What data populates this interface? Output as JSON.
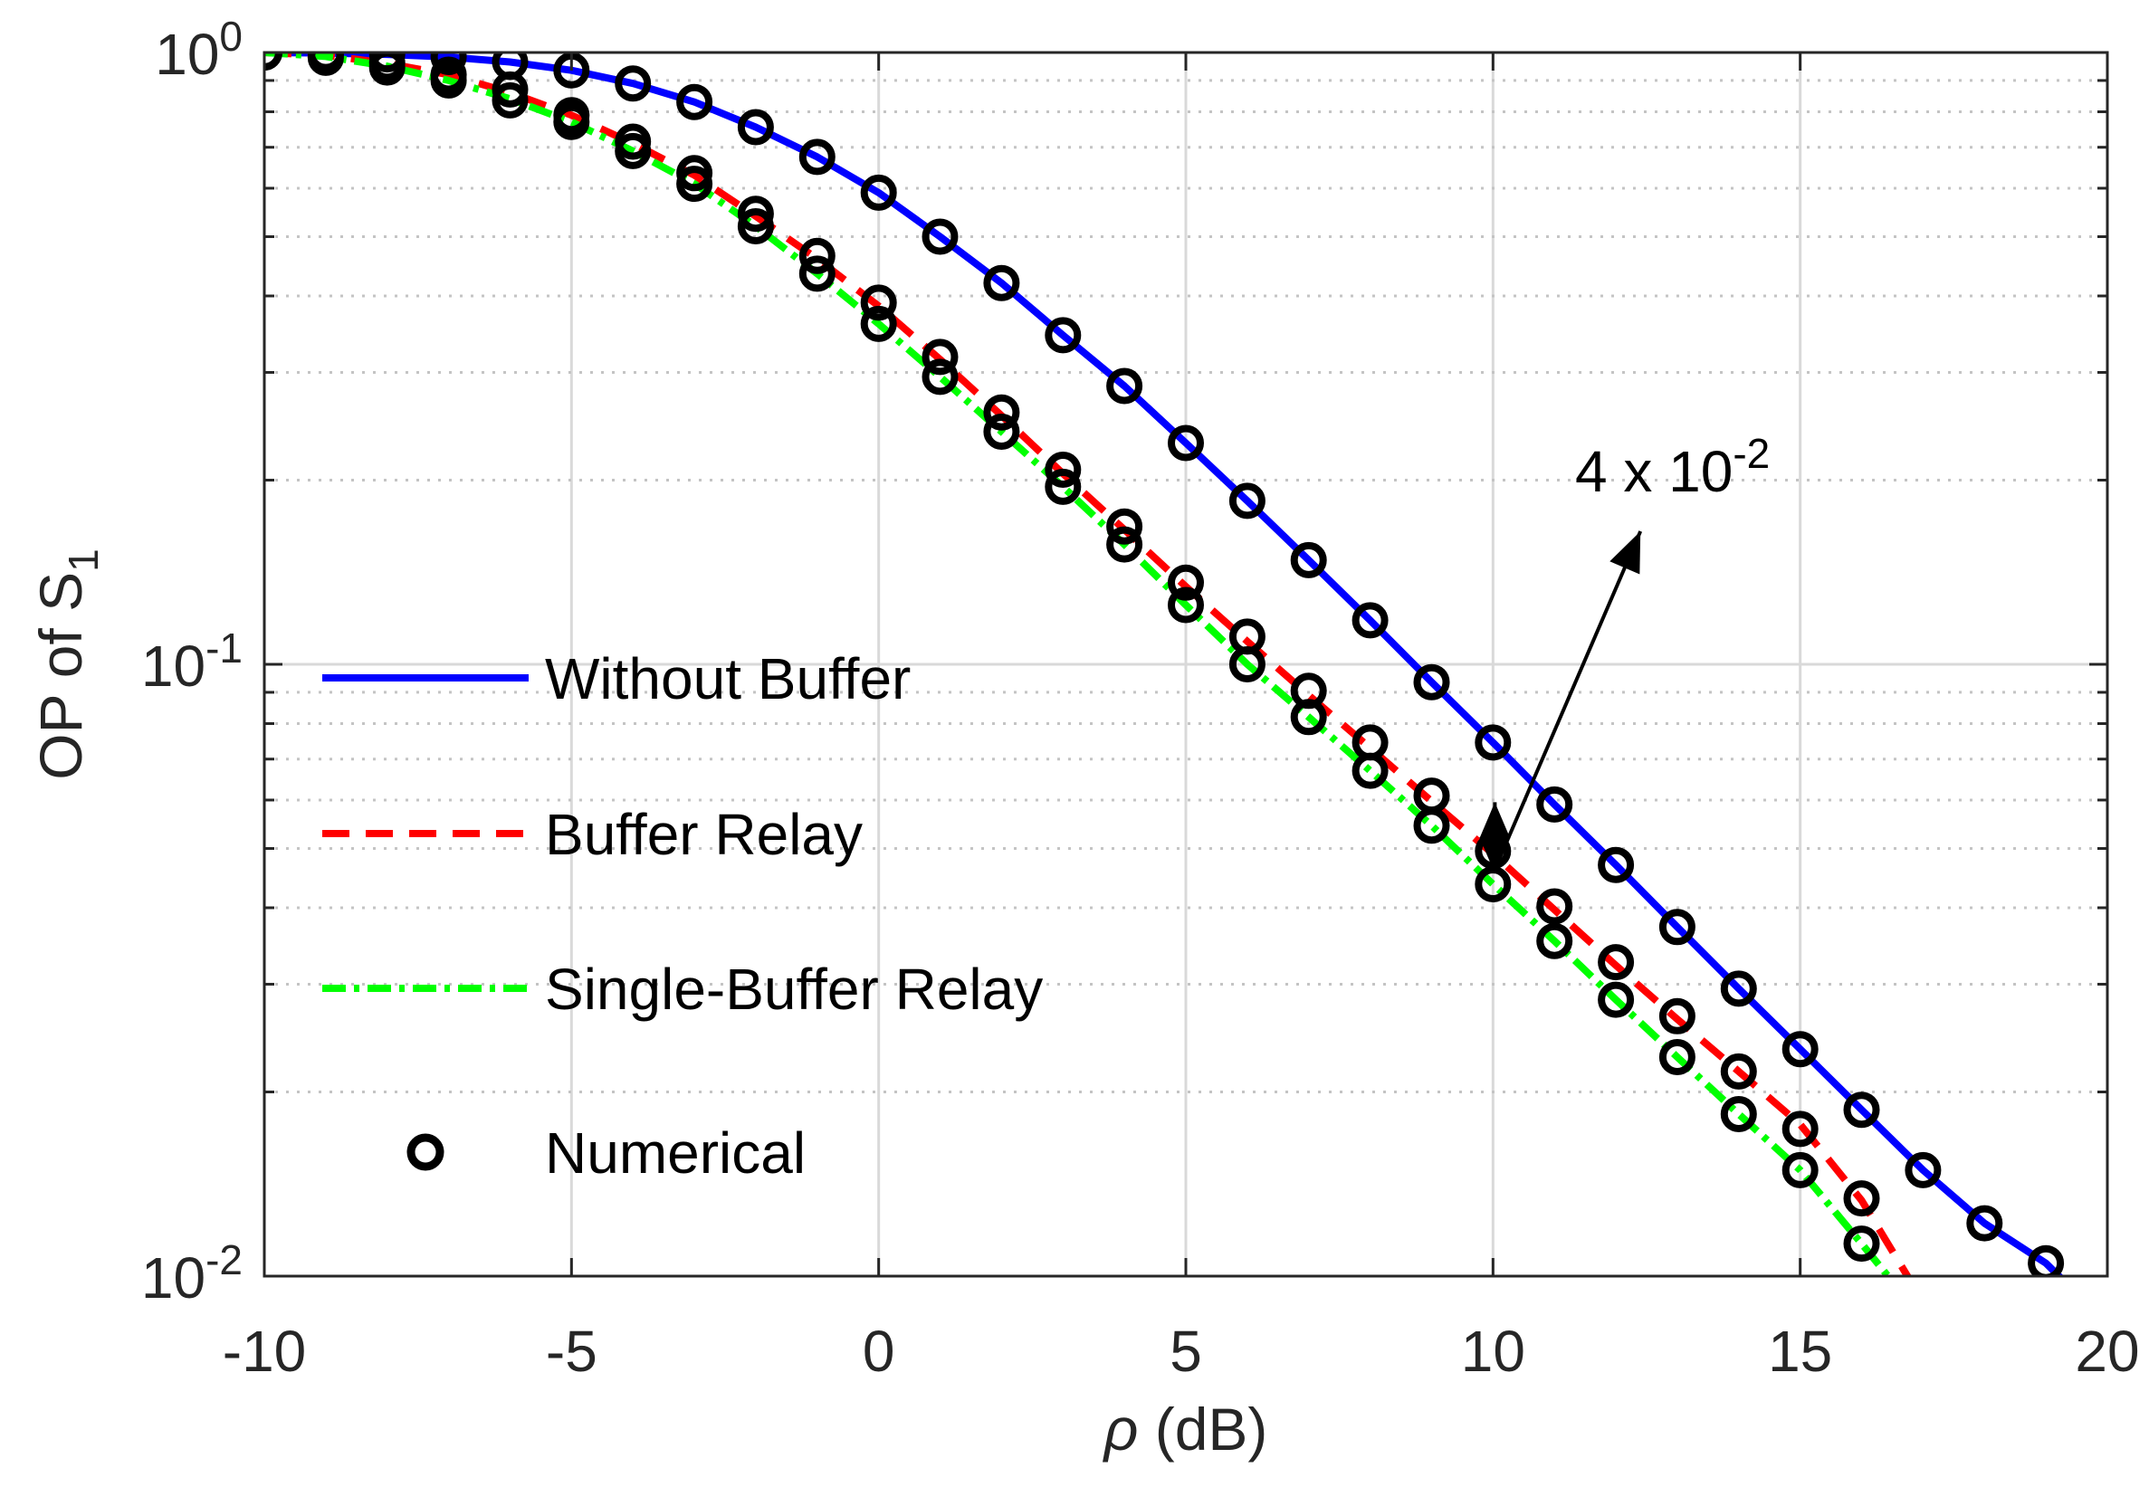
{
  "chart_data": {
    "type": "line",
    "yscale": "log",
    "title": "",
    "xlabel": {
      "symbol": "ρ",
      "rest": " (dB)"
    },
    "ylabel": {
      "main": "OP of S",
      "sub": "1"
    },
    "xlim": [
      -10,
      20
    ],
    "ylim": [
      0.01,
      1
    ],
    "xticks": [
      -10,
      -5,
      0,
      5,
      10,
      15,
      20
    ],
    "yticks": [
      {
        "base": "10",
        "exp": "-2",
        "value": 0.01
      },
      {
        "base": "10",
        "exp": "-1",
        "value": 0.1
      },
      {
        "base": "10",
        "exp": "0",
        "value": 1
      }
    ],
    "grid": true,
    "legend_location": "center-left",
    "colors": {
      "without_buffer": "#0000ff",
      "buffer_relay": "#ff0000",
      "single_buffer_relay": "#00ff00",
      "numerical": "#000000",
      "grid": "#d9d9d9",
      "axes": "#262626"
    },
    "series": [
      {
        "name": "Without Buffer",
        "style": "solid",
        "color": "#0000ff",
        "x": [
          -10,
          -9,
          -8,
          -7,
          -6,
          -5,
          -4,
          -3,
          -2,
          -1,
          0,
          1,
          2,
          3,
          4,
          5,
          6,
          7,
          8,
          9,
          10,
          11,
          12,
          13,
          14,
          15,
          16,
          17,
          18,
          19,
          19.3
        ],
        "y": [
          1.0,
          0.998,
          0.993,
          0.983,
          0.965,
          0.935,
          0.89,
          0.83,
          0.755,
          0.675,
          0.59,
          0.5,
          0.42,
          0.345,
          0.285,
          0.23,
          0.185,
          0.148,
          0.118,
          0.0935,
          0.0745,
          0.059,
          0.047,
          0.0372,
          0.0295,
          0.0235,
          0.0187,
          0.0149,
          0.0122,
          0.0105,
          0.0098
        ]
      },
      {
        "name": "Buffer Relay",
        "style": "dashed",
        "color": "#ff0000",
        "x": [
          -10,
          -9,
          -8,
          -7,
          -6,
          -5,
          -4,
          -3,
          -2,
          -1,
          0,
          1,
          2,
          3,
          4,
          5,
          6,
          7,
          8,
          9,
          10,
          11,
          12,
          13,
          14,
          15,
          16,
          16.8
        ],
        "y": [
          1.0,
          0.99,
          0.96,
          0.92,
          0.86,
          0.79,
          0.71,
          0.63,
          0.54,
          0.46,
          0.385,
          0.315,
          0.255,
          0.205,
          0.166,
          0.134,
          0.109,
          0.089,
          0.073,
          0.0597,
          0.049,
          0.0397,
          0.0322,
          0.0263,
          0.0216,
          0.0177,
          0.0133,
          0.0098
        ]
      },
      {
        "name": "Single-Buffer Relay",
        "style": "dashdot",
        "color": "#00ff00",
        "x": [
          -10,
          -9,
          -8,
          -7,
          -6,
          -5,
          -4,
          -3,
          -2,
          -1,
          0,
          1,
          2,
          3,
          4,
          5,
          6,
          7,
          8,
          9,
          10,
          11,
          12,
          13,
          14,
          15,
          16,
          16.5
        ],
        "y": [
          1.0,
          0.985,
          0.95,
          0.9,
          0.84,
          0.77,
          0.69,
          0.61,
          0.52,
          0.435,
          0.36,
          0.295,
          0.24,
          0.195,
          0.157,
          0.125,
          0.1,
          0.082,
          0.067,
          0.0545,
          0.0437,
          0.0353,
          0.0283,
          0.0228,
          0.0184,
          0.0149,
          0.0113,
          0.0098
        ]
      },
      {
        "name": "Numerical",
        "style": "markers",
        "color": "#000000",
        "points": [
          [
            -10,
            1.0
          ],
          [
            -9,
            0.998
          ],
          [
            -8,
            0.993
          ],
          [
            -7,
            0.983
          ],
          [
            -6,
            0.965
          ],
          [
            -5,
            0.935
          ],
          [
            -4,
            0.89
          ],
          [
            -3,
            0.83
          ],
          [
            -2,
            0.755
          ],
          [
            -1,
            0.675
          ],
          [
            0,
            0.59
          ],
          [
            1,
            0.5
          ],
          [
            2,
            0.42
          ],
          [
            3,
            0.345
          ],
          [
            4,
            0.285
          ],
          [
            5,
            0.23
          ],
          [
            6,
            0.185
          ],
          [
            7,
            0.148
          ],
          [
            8,
            0.118
          ],
          [
            9,
            0.0935
          ],
          [
            10,
            0.0745
          ],
          [
            11,
            0.059
          ],
          [
            12,
            0.047
          ],
          [
            13,
            0.0372
          ],
          [
            14,
            0.0295
          ],
          [
            15,
            0.0235
          ],
          [
            16,
            0.0187
          ],
          [
            17,
            0.0149
          ],
          [
            18,
            0.0122
          ],
          [
            19,
            0.0105
          ],
          [
            -10,
            1.0
          ],
          [
            -9,
            0.99
          ],
          [
            -8,
            0.962
          ],
          [
            -7,
            0.92
          ],
          [
            -6,
            0.87
          ],
          [
            -5,
            0.79
          ],
          [
            -4,
            0.715
          ],
          [
            -3,
            0.635
          ],
          [
            -2,
            0.545
          ],
          [
            -1,
            0.465
          ],
          [
            0,
            0.39
          ],
          [
            1,
            0.318
          ],
          [
            2,
            0.258
          ],
          [
            3,
            0.208
          ],
          [
            4,
            0.168
          ],
          [
            5,
            0.136
          ],
          [
            6,
            0.111
          ],
          [
            7,
            0.0905
          ],
          [
            8,
            0.0745
          ],
          [
            9,
            0.061
          ],
          [
            10,
            0.0495
          ],
          [
            11,
            0.0402
          ],
          [
            12,
            0.0326
          ],
          [
            13,
            0.0266
          ],
          [
            14,
            0.0216
          ],
          [
            15,
            0.0174
          ],
          [
            16,
            0.0134
          ],
          [
            -10,
            1.0
          ],
          [
            -9,
            0.98
          ],
          [
            -8,
            0.945
          ],
          [
            -7,
            0.9
          ],
          [
            -6,
            0.835
          ],
          [
            -5,
            0.77
          ],
          [
            -4,
            0.69
          ],
          [
            -3,
            0.61
          ],
          [
            -2,
            0.52
          ],
          [
            -1,
            0.435
          ],
          [
            0,
            0.36
          ],
          [
            1,
            0.295
          ],
          [
            2,
            0.24
          ],
          [
            3,
            0.195
          ],
          [
            4,
            0.157
          ],
          [
            5,
            0.125
          ],
          [
            6,
            0.1
          ],
          [
            7,
            0.082
          ],
          [
            8,
            0.067
          ],
          [
            9,
            0.0545
          ],
          [
            10,
            0.0437
          ],
          [
            11,
            0.0353
          ],
          [
            12,
            0.0283
          ],
          [
            13,
            0.0228
          ],
          [
            14,
            0.0184
          ],
          [
            15,
            0.0149
          ],
          [
            16,
            0.0113
          ]
        ]
      }
    ],
    "annotations": [
      {
        "base": "4 x 10",
        "exp": "-2",
        "arrow_from": [
          10.1,
          0.048
        ],
        "arrow_to": [
          12.4,
          0.165
        ],
        "gap_arrow_x": 10.03,
        "gap_arrow_from": 0.0455,
        "gap_arrow_to": 0.0595
      }
    ]
  }
}
